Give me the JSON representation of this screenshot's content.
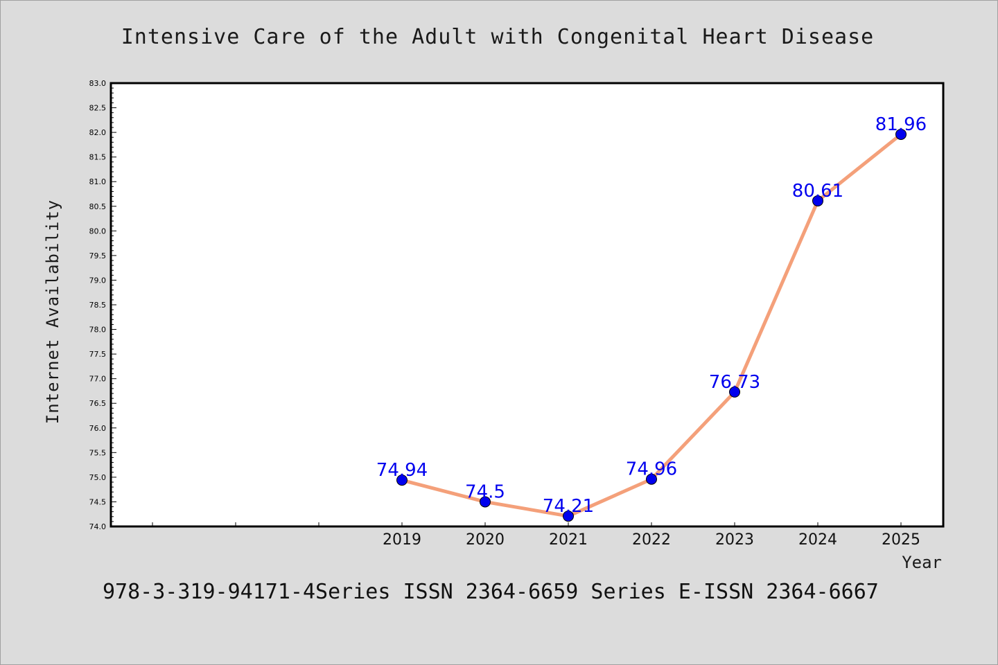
{
  "chart_data": {
    "type": "line",
    "title": "Intensive Care of the Adult with Congenital Heart Disease",
    "xlabel": "Year",
    "ylabel": "Internet Availability",
    "categories": [
      "2019",
      "2020",
      "2021",
      "2022",
      "2023",
      "2024",
      "2025"
    ],
    "series": [
      {
        "values": [
          74.94,
          74.5,
          74.21,
          74.96,
          76.73,
          80.61,
          81.96
        ],
        "labels": [
          "74.94",
          "74.5",
          "74.21",
          "74.96",
          "76.73",
          "80.61",
          "81.96"
        ]
      }
    ],
    "ylim": [
      74.0,
      83.0
    ],
    "ytick_labels": [
      "74.0",
      "74.5",
      "75.0",
      "75.5",
      "76.0",
      "76.5",
      "77.0",
      "77.5",
      "78.0",
      "78.5",
      "79.0",
      "79.5",
      "80.0",
      "80.5",
      "81.0",
      "81.5",
      "82.0",
      "82.5",
      "83.0"
    ],
    "grid": false,
    "legend": "none",
    "line_color": "#f4a07a",
    "marker_color": "#0000ee",
    "label_color": "#0000ee",
    "background": "#dcdcdc",
    "plot_background": "#ffffff"
  },
  "footer": {
    "text": "978-3-319-94171-4Series ISSN 2364-6659 Series E-ISSN 2364-6667"
  }
}
